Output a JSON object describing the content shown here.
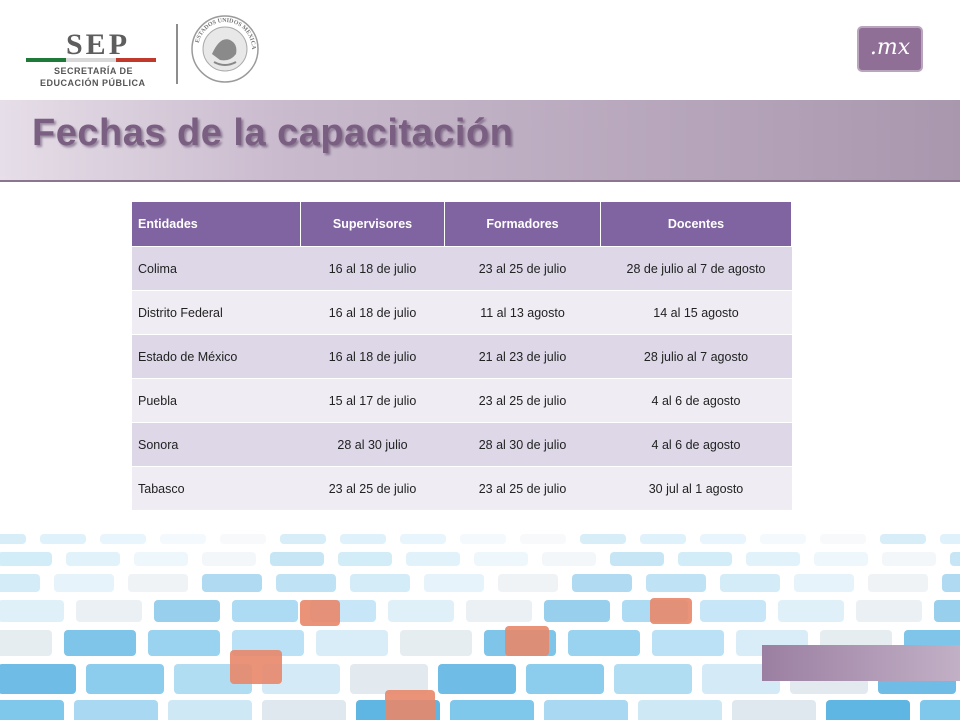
{
  "header": {
    "sep_acronym": "SEP",
    "sep_line1": "SECRETARÍA DE",
    "sep_line2": "EDUCACIÓN PÚBLICA",
    "seal_text": "ESTADOS UNIDOS MEXICANOS",
    "domain_badge": ".mx"
  },
  "slide": {
    "title": "Fechas de la capacitación"
  },
  "table": {
    "headers": [
      "Entidades",
      "Supervisores",
      "Formadores",
      "Docentes"
    ],
    "rows": [
      [
        "Colima",
        "16 al 18 de julio",
        "23 al 25 de julio",
        "28 de julio al 7 de agosto"
      ],
      [
        "Distrito Federal",
        "16 al 18 de julio",
        "11 al 13 agosto",
        "14 al 15 agosto"
      ],
      [
        "Estado de México",
        "16 al 18 de julio",
        "21 al 23 de julio",
        "28 julio al 7 agosto"
      ],
      [
        "Puebla",
        "15 al 17 de julio",
        "23 al 25 de julio",
        "4 al 6 de agosto"
      ],
      [
        "Sonora",
        "28 al 30 julio",
        "28 al 30 de julio",
        "4 al 6 de agosto"
      ],
      [
        "Tabasco",
        "23 al 25 de julio",
        "23 al 25 de julio",
        "30 jul al 1 agosto"
      ]
    ]
  },
  "colors": {
    "header_purple": "#8064a2",
    "row_dark": "#ddd7e7",
    "row_light": "#efecf3",
    "title_color": "#7a5f82"
  }
}
